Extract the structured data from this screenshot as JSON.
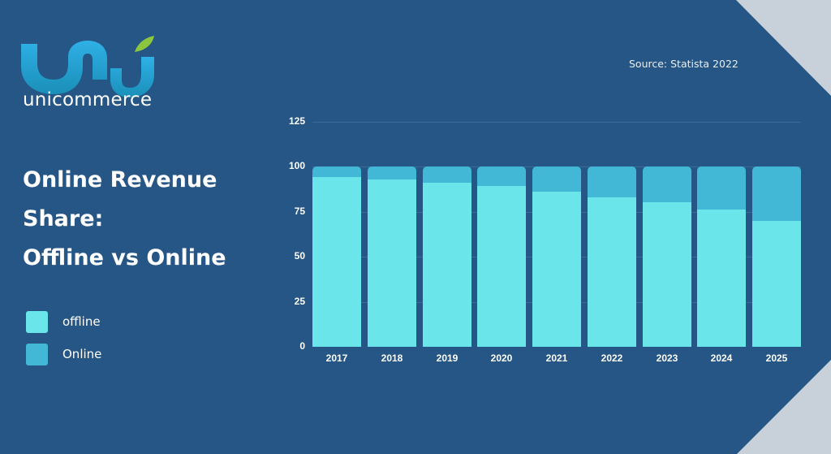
{
  "brand": {
    "name": "unicommerce",
    "logo_colors": {
      "primary": "#2aa8dc",
      "secondary": "#1b8fc4",
      "leaf": "#8cc63f"
    }
  },
  "heading": {
    "line1": "Online Revenue",
    "line2": "Share:",
    "line3": "Offline vs Online"
  },
  "source_text": "Source: Statista 2022",
  "legend": [
    {
      "label": "offline",
      "color": "#6ae5e9"
    },
    {
      "label": "Online",
      "color": "#42b7d6"
    }
  ],
  "colors": {
    "background": "#255685",
    "corner": "#c8d0da",
    "offline": "#6ae5e9",
    "online": "#42b7d6"
  },
  "chart_data": {
    "type": "bar",
    "stacked": true,
    "title": "Online Revenue Share: Offline vs Online",
    "xlabel": "",
    "ylabel": "",
    "categories": [
      "2017",
      "2018",
      "2019",
      "2020",
      "2021",
      "2022",
      "2023",
      "2024",
      "2025"
    ],
    "series": [
      {
        "name": "offline",
        "values": [
          94,
          93,
          91,
          89,
          86,
          83,
          80,
          76,
          70
        ]
      },
      {
        "name": "Online",
        "values": [
          6,
          7,
          9,
          11,
          14,
          17,
          20,
          24,
          30
        ]
      }
    ],
    "yticks": [
      "0",
      "25",
      "50",
      "75",
      "100",
      "125"
    ],
    "ylim": [
      0,
      125
    ],
    "grid": true,
    "legend_position": "left",
    "source": "Source: Statista 2022"
  }
}
